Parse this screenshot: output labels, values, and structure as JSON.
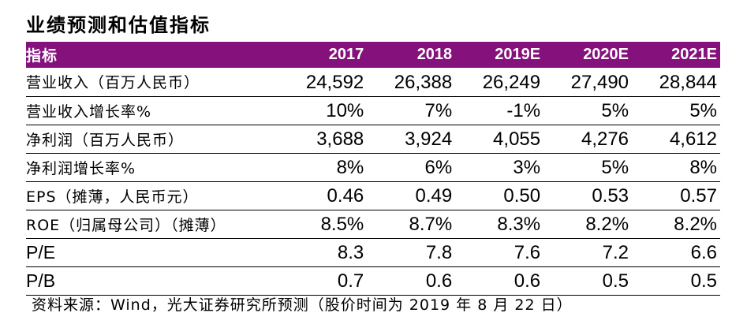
{
  "title": "业绩预测和估值指标",
  "header": {
    "label": "指标",
    "years": [
      "2017",
      "2018",
      "2019E",
      "2020E",
      "2021E"
    ]
  },
  "rows": [
    {
      "label": "营业收入（百万人民币）",
      "values": [
        "24,592",
        "26,388",
        "26,249",
        "27,490",
        "28,844"
      ]
    },
    {
      "label": "营业收入增长率%",
      "values": [
        "10%",
        "7%",
        "-1%",
        "5%",
        "5%"
      ]
    },
    {
      "label": "净利润（百万人民币）",
      "values": [
        "3,688",
        "3,924",
        "4,055",
        "4,276",
        "4,612"
      ]
    },
    {
      "label": "净利润增长率%",
      "values": [
        "8%",
        "6%",
        "3%",
        "5%",
        "8%"
      ]
    },
    {
      "label": "EPS（摊薄，人民币元）",
      "values": [
        "0.46",
        "0.49",
        "0.50",
        "0.53",
        "0.57"
      ]
    },
    {
      "label": "ROE（归属母公司）（摊薄）",
      "values": [
        "8.5%",
        "8.7%",
        "8.3%",
        "8.2%",
        "8.2%"
      ]
    },
    {
      "label": "P/E",
      "values": [
        "8.3",
        "7.8",
        "7.6",
        "7.2",
        "6.6"
      ]
    },
    {
      "label": "P/B",
      "values": [
        "0.7",
        "0.6",
        "0.6",
        "0.5",
        "0.5"
      ]
    }
  ],
  "source": "资料来源：Wind，光大证券研究所预测（股价时间为 2019 年 8 月 22 日）",
  "colors": {
    "header_bg": "#85117d",
    "header_text": "#ffffff",
    "rule": "#000000"
  }
}
